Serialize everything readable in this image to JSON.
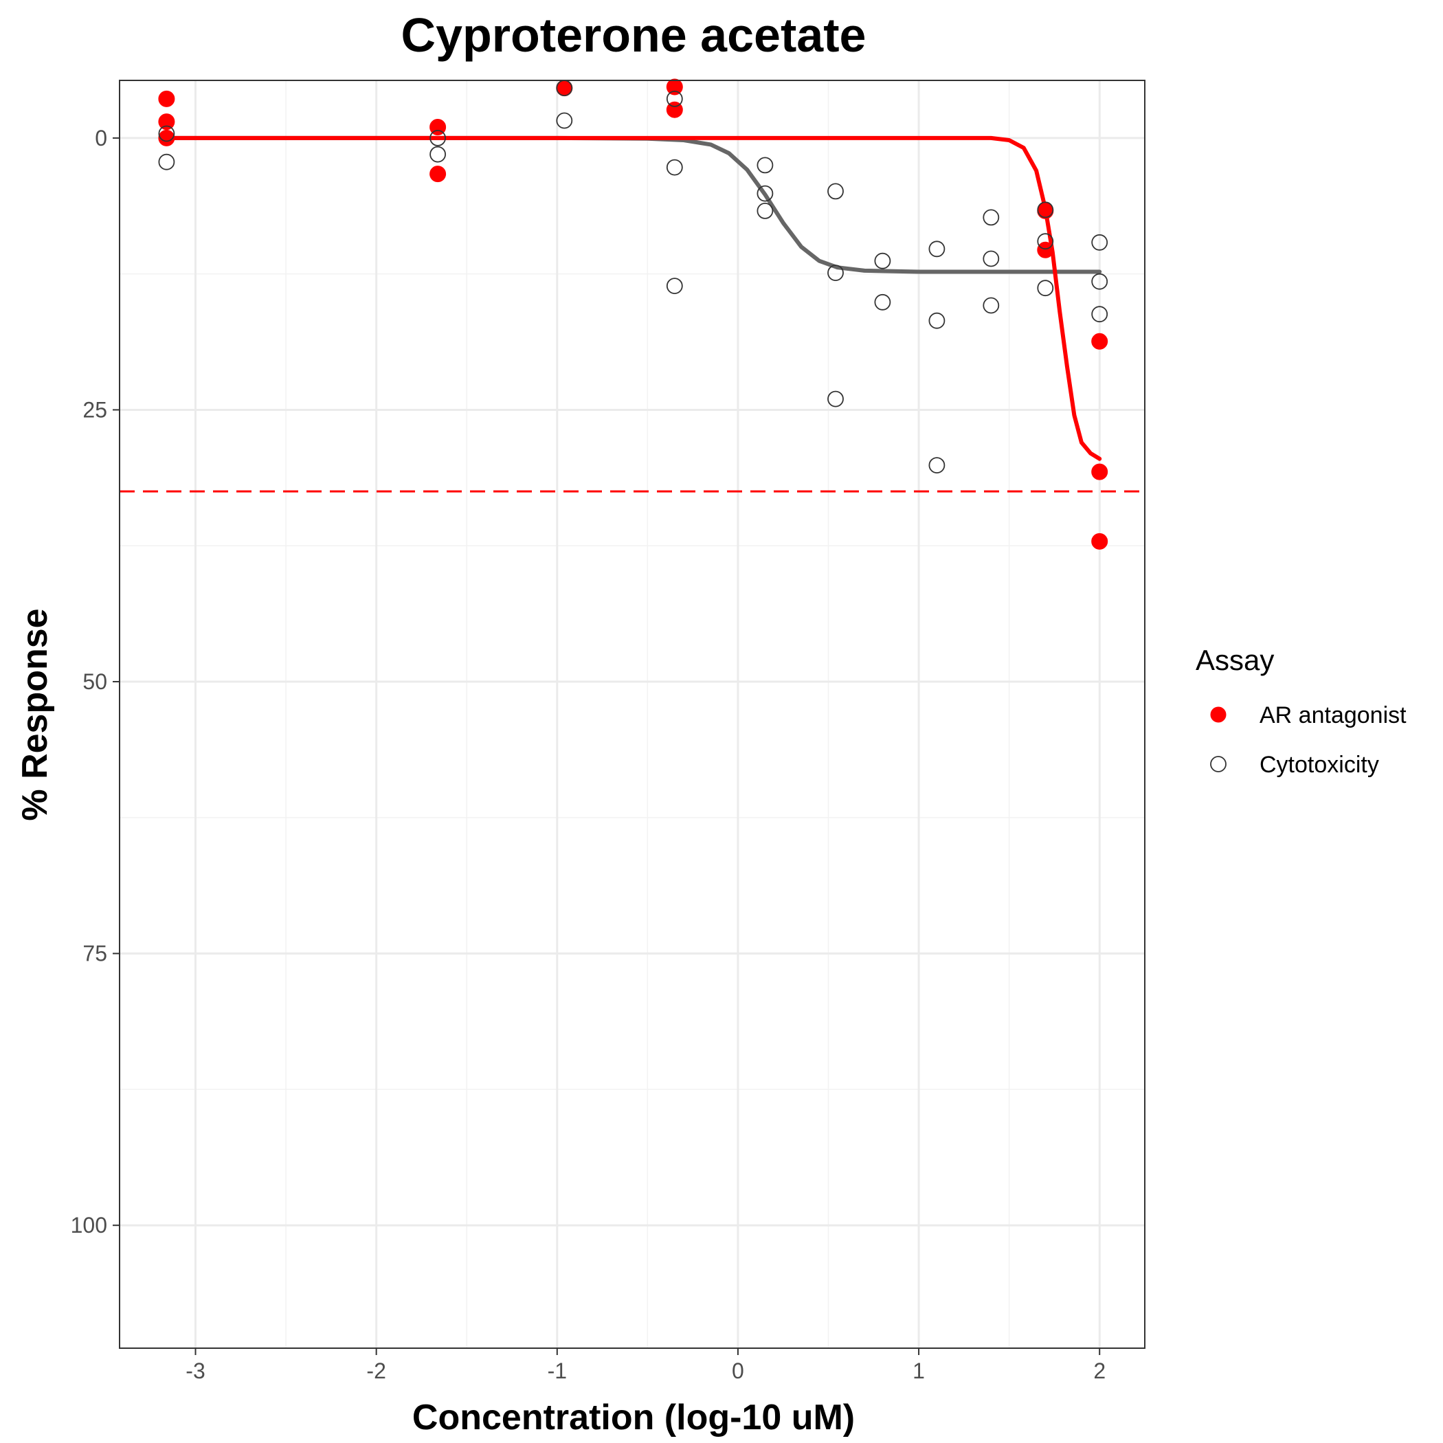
{
  "chart_data": {
    "type": "scatter",
    "title": "Cyproterone acetate",
    "xlabel": "Concentration (log-10 uM)",
    "ylabel": "% Response",
    "xlim": [
      -3.42,
      2.25
    ],
    "ylim": [
      -5.3,
      111.3
    ],
    "y_reversed": true,
    "grid": true,
    "legend_position": "right",
    "legend_title": "Assay",
    "x_ticks": [
      -3,
      -2,
      -1,
      0,
      1,
      2
    ],
    "x_tick_labels": [
      "-3",
      "-2",
      "-1",
      "0",
      "1",
      "2"
    ],
    "y_ticks": [
      0,
      25,
      50,
      75,
      100
    ],
    "y_tick_labels": [
      "0",
      "25",
      "50",
      "75",
      "100"
    ],
    "reference_line": {
      "y": 32.5,
      "color": "#ff0000",
      "style": "dashed"
    },
    "series": [
      {
        "name": "AR antagonist",
        "color": "#ff0000",
        "marker": "filled-circle",
        "points": [
          [
            -3.16,
            -3.6
          ],
          [
            -3.16,
            -1.5
          ],
          [
            -3.16,
            0.0
          ],
          [
            -1.66,
            -1.0
          ],
          [
            -1.66,
            3.3
          ],
          [
            -0.96,
            -4.6
          ],
          [
            -0.35,
            -4.7
          ],
          [
            -0.35,
            -2.6
          ],
          [
            1.7,
            6.7
          ],
          [
            1.7,
            10.3
          ],
          [
            2.0,
            18.7
          ],
          [
            2.0,
            30.7
          ],
          [
            2.0,
            37.1
          ]
        ],
        "fit": [
          [
            -3.16,
            0.0
          ],
          [
            -2.0,
            0.0
          ],
          [
            -1.0,
            0.0
          ],
          [
            0.0,
            0.0
          ],
          [
            1.0,
            0.0
          ],
          [
            1.4,
            0.0
          ],
          [
            1.5,
            0.2
          ],
          [
            1.58,
            0.9
          ],
          [
            1.65,
            3.0
          ],
          [
            1.7,
            6.5
          ],
          [
            1.74,
            10.5
          ],
          [
            1.78,
            16.0
          ],
          [
            1.82,
            21.0
          ],
          [
            1.86,
            25.5
          ],
          [
            1.9,
            28.0
          ],
          [
            1.95,
            29.0
          ],
          [
            2.0,
            29.5
          ]
        ]
      },
      {
        "name": "Cytotoxicity",
        "color": "#000000",
        "marker": "open-circle",
        "points": [
          [
            -3.16,
            -0.4
          ],
          [
            -3.16,
            2.2
          ],
          [
            -1.66,
            0.0
          ],
          [
            -1.66,
            1.5
          ],
          [
            -0.96,
            -4.6
          ],
          [
            -0.96,
            -1.6
          ],
          [
            -0.35,
            -3.6
          ],
          [
            -0.35,
            2.7
          ],
          [
            -0.35,
            13.6
          ],
          [
            0.15,
            2.5
          ],
          [
            0.15,
            5.1
          ],
          [
            0.15,
            6.7
          ],
          [
            0.54,
            4.9
          ],
          [
            0.54,
            12.4
          ],
          [
            0.54,
            24.0
          ],
          [
            0.8,
            11.3
          ],
          [
            0.8,
            15.1
          ],
          [
            1.1,
            10.2
          ],
          [
            1.1,
            16.8
          ],
          [
            1.1,
            30.1
          ],
          [
            1.4,
            7.3
          ],
          [
            1.4,
            11.1
          ],
          [
            1.4,
            15.4
          ],
          [
            1.7,
            6.6
          ],
          [
            1.7,
            9.5
          ],
          [
            1.7,
            13.8
          ],
          [
            2.0,
            9.6
          ],
          [
            2.0,
            13.2
          ],
          [
            2.0,
            16.2
          ]
        ],
        "fit": [
          [
            -3.16,
            0.0
          ],
          [
            -2.0,
            0.0
          ],
          [
            -1.0,
            0.0
          ],
          [
            -0.5,
            0.05
          ],
          [
            -0.3,
            0.2
          ],
          [
            -0.15,
            0.6
          ],
          [
            -0.05,
            1.4
          ],
          [
            0.05,
            2.9
          ],
          [
            0.15,
            5.2
          ],
          [
            0.25,
            7.8
          ],
          [
            0.35,
            10.0
          ],
          [
            0.45,
            11.3
          ],
          [
            0.55,
            11.9
          ],
          [
            0.7,
            12.2
          ],
          [
            1.0,
            12.3
          ],
          [
            1.5,
            12.3
          ],
          [
            2.0,
            12.3
          ]
        ]
      }
    ]
  }
}
